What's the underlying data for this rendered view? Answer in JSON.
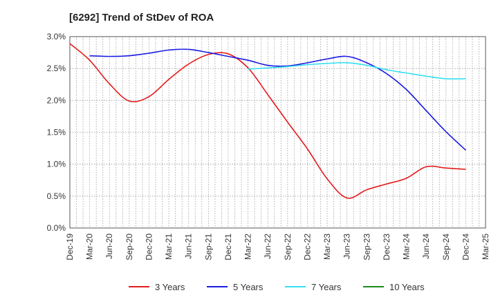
{
  "chart_data": {
    "type": "line",
    "title": "[6292]  Trend of StDev of ROA",
    "xlabel": "",
    "ylabel": "",
    "ylim": [
      0,
      3.0
    ],
    "y_tick_labels": [
      "0.0%",
      "0.5%",
      "1.0%",
      "1.5%",
      "2.0%",
      "2.5%",
      "3.0%"
    ],
    "categories": [
      "Dec-19",
      "Mar-20",
      "Jun-20",
      "Sep-20",
      "Dec-20",
      "Mar-21",
      "Jun-21",
      "Sep-21",
      "Dec-21",
      "Mar-22",
      "Jun-22",
      "Sep-22",
      "Dec-22",
      "Mar-23",
      "Jun-23",
      "Sep-23",
      "Dec-23",
      "Mar-24",
      "Jun-24",
      "Sep-24",
      "Dec-24",
      "Mar-25"
    ],
    "grid": true,
    "legend_position": "bottom",
    "series": [
      {
        "name": "3 Years",
        "color": "#e41a1c",
        "points": [
          [
            "Dec-19",
            2.89
          ],
          [
            "Mar-20",
            2.63
          ],
          [
            "Jun-20",
            2.26
          ],
          [
            "Sep-20",
            1.99
          ],
          [
            "Dec-20",
            2.06
          ],
          [
            "Mar-21",
            2.33
          ],
          [
            "Jun-21",
            2.57
          ],
          [
            "Sep-21",
            2.72
          ],
          [
            "Dec-21",
            2.73
          ],
          [
            "Mar-22",
            2.51
          ],
          [
            "Jun-22",
            2.09
          ],
          [
            "Sep-22",
            1.66
          ],
          [
            "Dec-22",
            1.24
          ],
          [
            "Mar-23",
            0.77
          ],
          [
            "Jun-23",
            0.47
          ],
          [
            "Sep-23",
            0.6
          ],
          [
            "Dec-23",
            0.69
          ],
          [
            "Mar-24",
            0.78
          ],
          [
            "Jun-24",
            0.96
          ],
          [
            "Sep-24",
            0.94
          ],
          [
            "Dec-24",
            0.92
          ]
        ]
      },
      {
        "name": "5 Years",
        "color": "#1a1ae0",
        "points": [
          [
            "Mar-20",
            2.7
          ],
          [
            "Jun-20",
            2.69
          ],
          [
            "Sep-20",
            2.7
          ],
          [
            "Dec-20",
            2.74
          ],
          [
            "Mar-21",
            2.79
          ],
          [
            "Jun-21",
            2.8
          ],
          [
            "Sep-21",
            2.75
          ],
          [
            "Dec-21",
            2.69
          ],
          [
            "Mar-22",
            2.63
          ],
          [
            "Jun-22",
            2.55
          ],
          [
            "Sep-22",
            2.54
          ],
          [
            "Dec-22",
            2.59
          ],
          [
            "Mar-23",
            2.65
          ],
          [
            "Jun-23",
            2.69
          ],
          [
            "Sep-23",
            2.59
          ],
          [
            "Dec-23",
            2.42
          ],
          [
            "Mar-24",
            2.17
          ],
          [
            "Jun-24",
            1.84
          ],
          [
            "Sep-24",
            1.51
          ],
          [
            "Dec-24",
            1.22
          ]
        ]
      },
      {
        "name": "7 Years",
        "color": "#33e0f0",
        "points": [
          [
            "Mar-22",
            2.49
          ],
          [
            "Jun-22",
            2.51
          ],
          [
            "Sep-22",
            2.53
          ],
          [
            "Dec-22",
            2.56
          ],
          [
            "Mar-23",
            2.58
          ],
          [
            "Jun-23",
            2.59
          ],
          [
            "Sep-23",
            2.55
          ],
          [
            "Dec-23",
            2.48
          ],
          [
            "Mar-24",
            2.43
          ],
          [
            "Jun-24",
            2.38
          ],
          [
            "Sep-24",
            2.34
          ],
          [
            "Dec-24",
            2.34
          ]
        ]
      },
      {
        "name": "10 Years",
        "color": "#1a8a1a",
        "points": []
      }
    ]
  }
}
